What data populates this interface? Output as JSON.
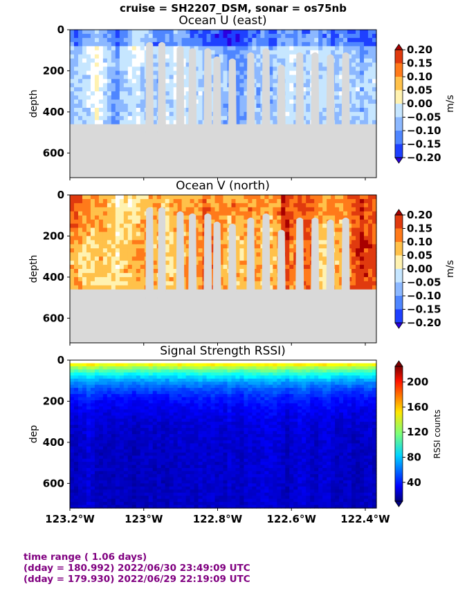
{
  "suptitle": "cruise = SH2207_DSM,  sonar = os75nb",
  "footer": {
    "line1": "time range ( 1.06 days)",
    "line2": "(dday = 180.992) 2022/06/30 23:49:09 UTC",
    "line3": "(dday = 179.930) 2022/06/29 22:19:09 UTC"
  },
  "colors": {
    "mask": "#d9d9d9",
    "footer_text": "#800080",
    "diverging": [
      "#2b00e0",
      "#1e40ff",
      "#4f86ff",
      "#8cb8ff",
      "#c6e6ff",
      "#ffffff",
      "#fff2b0",
      "#ffc14a",
      "#ff7a1a",
      "#e03a0e",
      "#a80000"
    ]
  },
  "chart_data": [
    {
      "type": "heatmap",
      "title": "Ocean U (east)",
      "xlabel": "",
      "ylabel": "depth",
      "x_ticks": [],
      "y_ticks": [
        "0",
        "200",
        "400",
        "600"
      ],
      "y_tick_values": [
        0,
        200,
        400,
        600
      ],
      "ylim": [
        720,
        0
      ],
      "xlim": [
        -123.2,
        -122.37
      ],
      "colorbar": {
        "label": "m/s",
        "ticks": [
          "0.20",
          "0.15",
          "0.10",
          "0.05",
          "0.00",
          "−0.05",
          "−0.10",
          "−0.15",
          "−0.20"
        ],
        "range": [
          -0.2,
          0.2
        ],
        "extend": "both"
      },
      "field": "u",
      "mean_value": -0.05,
      "bottom_depth": 460
    },
    {
      "type": "heatmap",
      "title": "Ocean V (north)",
      "xlabel": "",
      "ylabel": "depth",
      "x_ticks": [],
      "y_ticks": [
        "0",
        "200",
        "400",
        "600"
      ],
      "y_tick_values": [
        0,
        200,
        400,
        600
      ],
      "ylim": [
        720,
        0
      ],
      "xlim": [
        -123.2,
        -122.37
      ],
      "colorbar": {
        "label": "m/s",
        "ticks": [
          "0.20",
          "0.15",
          "0.10",
          "0.05",
          "0.00",
          "−0.05",
          "−0.10",
          "−0.15",
          "−0.20"
        ],
        "range": [
          -0.2,
          0.2
        ],
        "extend": "both"
      },
      "field": "v",
      "mean_value": 0.08,
      "bottom_depth": 460
    },
    {
      "type": "heatmap",
      "title": "Signal Strength RSSI)",
      "xlabel": "",
      "ylabel": "dep",
      "x_ticks": [
        "123.2°W",
        "123°W",
        "122.8°W",
        "122.6°W",
        "122.4°W"
      ],
      "x_tick_values": [
        -123.2,
        -123.0,
        -122.8,
        -122.6,
        -122.4
      ],
      "y_ticks": [
        "0",
        "200",
        "400",
        "600"
      ],
      "y_tick_values": [
        0,
        200,
        400,
        600
      ],
      "ylim": [
        720,
        0
      ],
      "xlim": [
        -123.2,
        -122.37
      ],
      "colorbar": {
        "label": "RSSI counts",
        "ticks": [
          "200",
          "160",
          "120",
          "80",
          "40"
        ],
        "tick_values": [
          200,
          160,
          120,
          80,
          40
        ],
        "range": [
          10,
          225
        ],
        "extend": "both"
      },
      "field": "rssi",
      "surface_value": 180,
      "deep_value": 25
    }
  ]
}
